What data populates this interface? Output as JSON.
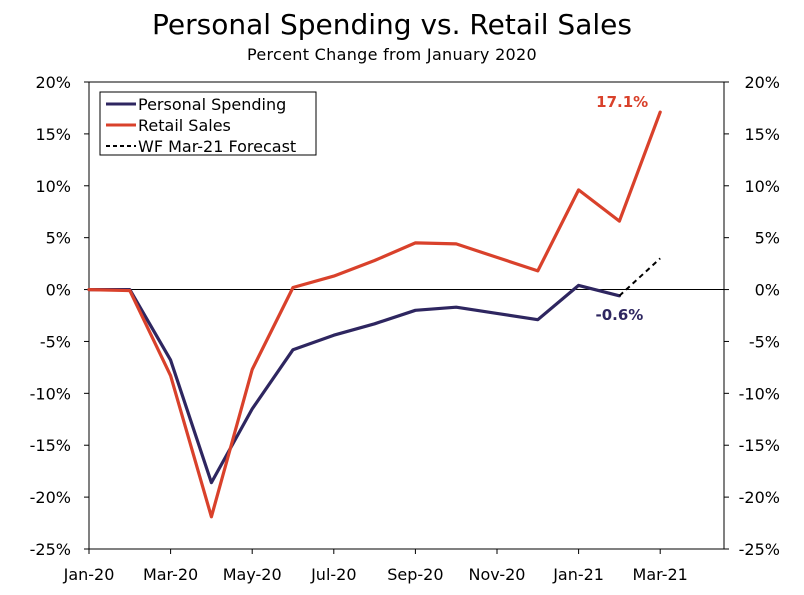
{
  "chart_data": {
    "type": "line",
    "title": "Personal Spending vs. Retail Sales",
    "subtitle": "Percent Change from January 2020",
    "x": [
      "Jan-20",
      "Feb-20",
      "Mar-20",
      "Apr-20",
      "May-20",
      "Jun-20",
      "Jul-20",
      "Aug-20",
      "Sep-20",
      "Oct-20",
      "Nov-20",
      "Dec-20",
      "Jan-21",
      "Feb-21",
      "Mar-21"
    ],
    "x_tick_labels": [
      "Jan-20",
      "Mar-20",
      "May-20",
      "Jul-20",
      "Sep-20",
      "Nov-20",
      "Jan-21",
      "Mar-21"
    ],
    "ylim": [
      -25,
      20
    ],
    "y_ticks": [
      20,
      15,
      10,
      5,
      0,
      -5,
      -10,
      -15,
      -20,
      -25
    ],
    "y_tick_labels": [
      "20%",
      "15%",
      "10%",
      "5%",
      "0%",
      "-5%",
      "-10%",
      "-15%",
      "-20%",
      "-25%"
    ],
    "series": [
      {
        "name": "Personal Spending",
        "color": "#2e2660",
        "dash": "solid",
        "values": [
          0,
          0,
          -6.8,
          -18.6,
          -11.5,
          -5.8,
          -4.4,
          -3.3,
          -2.0,
          -1.7,
          -2.3,
          -2.9,
          0.4,
          -0.6,
          null
        ]
      },
      {
        "name": "Retail Sales",
        "color": "#d9412b",
        "dash": "solid",
        "values": [
          0,
          -0.1,
          -8.3,
          -21.9,
          -7.7,
          0.2,
          1.3,
          2.8,
          4.5,
          4.4,
          3.1,
          1.8,
          9.6,
          6.6,
          17.1
        ]
      },
      {
        "name": "WF Mar-21 Forecast",
        "color": "#000000",
        "dash": "dashed",
        "values": [
          null,
          null,
          null,
          null,
          null,
          null,
          null,
          null,
          null,
          null,
          null,
          null,
          null,
          -0.6,
          3.0
        ]
      }
    ],
    "annotations": [
      {
        "text": "17.1%",
        "color": "#d9412b",
        "at": "Mar-21"
      },
      {
        "text": "-0.6%",
        "color": "#2e2660",
        "at": "Feb-21"
      }
    ],
    "legend_position": "top-left",
    "grid": false,
    "zero_line": true
  }
}
